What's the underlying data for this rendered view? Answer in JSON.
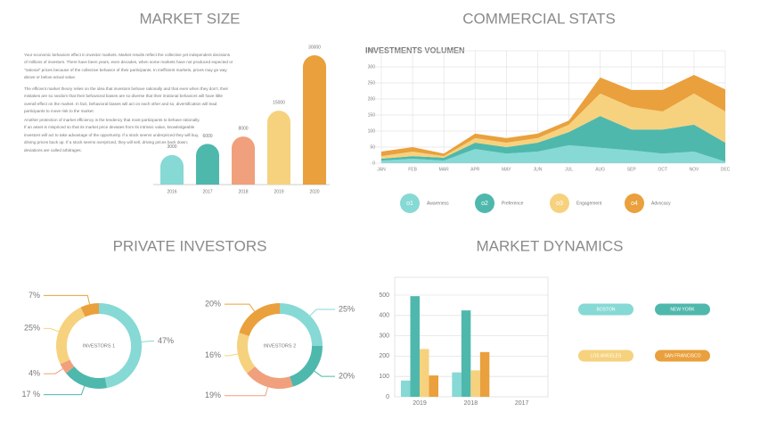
{
  "chart_data": [
    {
      "type": "bar",
      "title": "MARKET SIZE",
      "paragraphs": [
        "Your economic behaviors effect in investor markets. Market results reflect the collective yet independent decisions of millions of investors. There have been years, even decades, when some markets have not produced expected or \"rational\" prices because of the collective behavior of their participants. In inefficient markets, prices may go way above or below actual value.",
        "The efficient market theory relies on the idea that investors behave rationally and that even when they don't, their mistakes are so random that their behavioral biases are so diverse that their irrational behaviors will have little overall effect on the market. In fact, behavioral biases will act on each other and so, diversification will lead participants to move risk to the market.",
        "Another protection of market efficiency is the tendency that most participants to behave rationally. If an asset is mispriced so that its market price deviates from its intrinsic value, knowledgeable investors will act to take advantage of the opportunity. If a stock seems underpriced they will buy, driving prices back up. If a stock seems overpriced, they will sell, driving prices back down; deviations are called arbitrages."
      ],
      "categories": [
        "2016",
        "2017",
        "2018",
        "2019",
        "2020"
      ],
      "values": [
        3000,
        6000,
        8000,
        15000,
        30000
      ],
      "colors": [
        "#86d9d4",
        "#4fb8ad",
        "#f0a07c",
        "#f6d27e",
        "#eaa03c"
      ],
      "ylim": [
        -5000,
        30000
      ]
    },
    {
      "type": "area",
      "stacked": true,
      "title": "COMMERCIAL STATS",
      "subtitle": "INVESTMENTS VOLUMEN",
      "categories": [
        "JAN",
        "FEB",
        "MAR",
        "APR",
        "MAY",
        "JUN",
        "JUL",
        "AUG",
        "SEP",
        "OCT",
        "NOV",
        "DEC"
      ],
      "series": [
        {
          "name": "Awareness",
          "marker_label": "o1",
          "color": "#86d9d4",
          "values": [
            8,
            14,
            8,
            44,
            30,
            36,
            56,
            48,
            40,
            30,
            36,
            5
          ]
        },
        {
          "name": "Preference",
          "marker_label": "o2",
          "color": "#4fb8ad",
          "values": [
            6,
            8,
            9,
            20,
            20,
            28,
            41,
            99,
            65,
            75,
            84,
            59
          ]
        },
        {
          "name": "Engagement",
          "marker_label": "o3",
          "color": "#f6d27e",
          "values": [
            8,
            14,
            5,
            14,
            14,
            14,
            23,
            70,
            70,
            56,
            97,
            97
          ]
        },
        {
          "name": "Advocacy",
          "marker_label": "o4",
          "color": "#eaa03c",
          "values": [
            14,
            14,
            8,
            14,
            14,
            14,
            13,
            50,
            53,
            67,
            58,
            69
          ]
        }
      ],
      "ylim": [
        0,
        350
      ],
      "yticks": [
        0,
        50,
        100,
        150,
        200,
        250,
        300,
        350
      ],
      "grid": true
    },
    {
      "type": "donut",
      "title": "PRIVATE INVESTORS",
      "center_label": "INVESTORS 1",
      "values": [
        47,
        17,
        4,
        25,
        7
      ],
      "value_labels": [
        "47%",
        "17 %",
        "4%",
        "25%",
        "7%"
      ],
      "colors": [
        "#86d9d4",
        "#4fb8ad",
        "#f0a07c",
        "#f6d27e",
        "#eaa03c"
      ]
    },
    {
      "type": "donut",
      "center_label": "INVESTORS 2",
      "values": [
        25,
        20,
        19,
        16,
        20
      ],
      "value_labels": [
        "25%",
        "20%",
        "19%",
        "16%",
        "20%"
      ],
      "colors": [
        "#86d9d4",
        "#4fb8ad",
        "#f0a07c",
        "#f6d27e",
        "#eaa03c"
      ]
    },
    {
      "type": "grouped_bar",
      "title": "MARKET DYNAMICS",
      "categories": [
        "2019",
        "2018",
        "2017"
      ],
      "series": [
        {
          "name": "BOSTON",
          "color": "#86d9d4",
          "values": [
            80,
            120,
            null
          ]
        },
        {
          "name": "NEW YORK",
          "color": "#4fb8ad",
          "values": [
            495,
            425,
            null
          ]
        },
        {
          "name": "LOS ANGELES",
          "color": "#f6d27e",
          "values": [
            235,
            130,
            null
          ]
        },
        {
          "name": "SAN FRANCISCO",
          "color": "#eaa03c",
          "values": [
            105,
            220,
            null
          ]
        }
      ],
      "ylim": [
        0,
        500
      ],
      "yticks": [
        0,
        100,
        200,
        300,
        400,
        500
      ],
      "grid": true
    }
  ]
}
